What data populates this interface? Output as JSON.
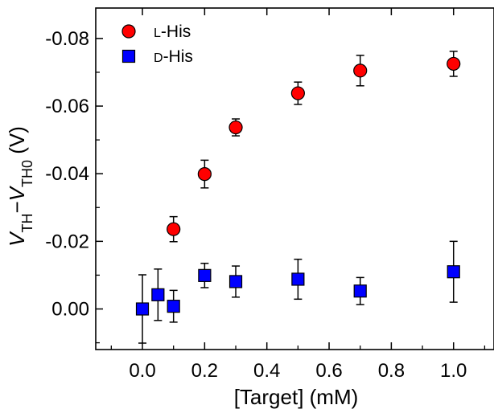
{
  "chart_data": {
    "type": "scatter",
    "xlabel": "[Target] (mM)",
    "ylabel_parts": [
      "V",
      "TH",
      "−",
      "V",
      "TH0",
      " (V)"
    ],
    "xlim": [
      -0.15,
      1.13
    ],
    "ylim": [
      0.012,
      -0.089
    ],
    "y_axis_inverted": true,
    "x_ticks": [
      0.0,
      0.2,
      0.4,
      0.6,
      0.8,
      1.0
    ],
    "x_tick_labels": [
      "0.0",
      "0.2",
      "0.4",
      "0.6",
      "0.8",
      "1.0"
    ],
    "y_ticks": [
      0.0,
      -0.02,
      -0.04,
      -0.06,
      -0.08
    ],
    "y_tick_labels": [
      "0.00",
      "-0.02",
      "-0.04",
      "-0.06",
      "-0.08"
    ],
    "legend_position": "top-left",
    "series": [
      {
        "name_small_cap": "L",
        "name_rest": "-His",
        "marker": "circle",
        "color": "#ff0000",
        "x": [
          0.1,
          0.2,
          0.3,
          0.5,
          0.7,
          1.0
        ],
        "y": [
          -0.0236,
          -0.0399,
          -0.0537,
          -0.0638,
          -0.0705,
          -0.0725
        ],
        "y_err": [
          0.0037,
          0.0041,
          0.0025,
          0.0033,
          0.0045,
          0.0037
        ]
      },
      {
        "name_small_cap": "D",
        "name_rest": "-His",
        "marker": "square",
        "color": "#0000ff",
        "x": [
          0.0,
          0.05,
          0.1,
          0.2,
          0.3,
          0.5,
          0.7,
          1.0
        ],
        "y": [
          0.0,
          -0.0042,
          -0.0008,
          -0.0099,
          -0.0081,
          -0.0088,
          -0.0053,
          -0.011
        ],
        "y_err": [
          0.0101,
          0.0076,
          0.0047,
          0.0036,
          0.0046,
          0.0059,
          0.004,
          0.009
        ]
      }
    ]
  }
}
